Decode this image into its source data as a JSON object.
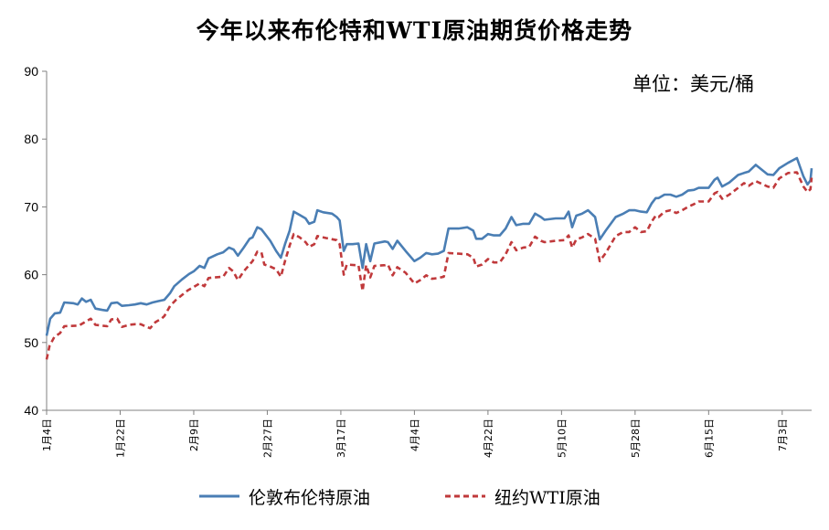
{
  "chart_data": {
    "type": "line",
    "title": "今年以来布伦特和WTI原油期货价格走势",
    "unit": "单位：美元/桶",
    "ylim": [
      40,
      90
    ],
    "yticks": [
      40,
      50,
      60,
      70,
      80,
      90
    ],
    "xlim": [
      0,
      130
    ],
    "xticks": [
      {
        "label": "1月4日",
        "x": 0
      },
      {
        "label": "1月22日",
        "x": 12.5
      },
      {
        "label": "2月9日",
        "x": 25
      },
      {
        "label": "2月27日",
        "x": 37.5
      },
      {
        "label": "3月17日",
        "x": 50
      },
      {
        "label": "4月4日",
        "x": 62.5
      },
      {
        "label": "4月22日",
        "x": 75
      },
      {
        "label": "5月10日",
        "x": 87.5
      },
      {
        "label": "5月28日",
        "x": 100
      },
      {
        "label": "6月15日",
        "x": 112.5
      },
      {
        "label": "7月3日",
        "x": 125
      }
    ],
    "grid": false,
    "legend_position": "bottom",
    "colors": {
      "brent": "#4a7eb4",
      "wti": "#c0393b"
    },
    "series": [
      {
        "name": "伦敦布伦特原油",
        "style": "solid",
        "points": [
          [
            0,
            51
          ],
          [
            0.6,
            53.5
          ],
          [
            1.4,
            54.3
          ],
          [
            2.3,
            54.4
          ],
          [
            3,
            55.9
          ],
          [
            4.5,
            55.8
          ],
          [
            5.3,
            55.6
          ],
          [
            6,
            56.5
          ],
          [
            6.7,
            56
          ],
          [
            7.5,
            56.3
          ],
          [
            8.3,
            55
          ],
          [
            9.5,
            54.8
          ],
          [
            10.3,
            54.7
          ],
          [
            11,
            55.8
          ],
          [
            12,
            55.9
          ],
          [
            12.8,
            55.4
          ],
          [
            14,
            55.5
          ],
          [
            15,
            55.6
          ],
          [
            16,
            55.8
          ],
          [
            17,
            55.6
          ],
          [
            18,
            55.9
          ],
          [
            19,
            56.1
          ],
          [
            20,
            56.3
          ],
          [
            21,
            57.3
          ],
          [
            21.7,
            58.3
          ],
          [
            23,
            59.3
          ],
          [
            24.2,
            60.1
          ],
          [
            25,
            60.5
          ],
          [
            26,
            61.3
          ],
          [
            26.8,
            61
          ],
          [
            27.5,
            62.4
          ],
          [
            29,
            63
          ],
          [
            30,
            63.3
          ],
          [
            31,
            64
          ],
          [
            31.8,
            63.7
          ],
          [
            32.5,
            62.8
          ],
          [
            33.5,
            64
          ],
          [
            34.5,
            65.3
          ],
          [
            35,
            65.5
          ],
          [
            35.8,
            67
          ],
          [
            36.5,
            66.7
          ],
          [
            38,
            65
          ],
          [
            39,
            63.5
          ],
          [
            39.8,
            62.5
          ],
          [
            40.5,
            64.5
          ],
          [
            41.3,
            66.5
          ],
          [
            42,
            69.3
          ],
          [
            43,
            68.8
          ],
          [
            44,
            68.3
          ],
          [
            44.6,
            67.5
          ],
          [
            45.5,
            67.8
          ],
          [
            46,
            69.5
          ],
          [
            47,
            69.2
          ],
          [
            48.5,
            69
          ],
          [
            49.3,
            68.5
          ],
          [
            49.8,
            68
          ],
          [
            50.5,
            63.5
          ],
          [
            51,
            64.5
          ],
          [
            52,
            64.5
          ],
          [
            53,
            64.6
          ],
          [
            53.7,
            61
          ],
          [
            54.3,
            64.5
          ],
          [
            55,
            62
          ],
          [
            55.7,
            64.6
          ],
          [
            57.5,
            64.9
          ],
          [
            58,
            64.8
          ],
          [
            58.8,
            63.8
          ],
          [
            59.6,
            65
          ],
          [
            61,
            63.5
          ],
          [
            62.5,
            62
          ],
          [
            63.5,
            62.5
          ],
          [
            64.5,
            63.2
          ],
          [
            65.5,
            63
          ],
          [
            66.5,
            63.1
          ],
          [
            67.5,
            63.5
          ],
          [
            68.3,
            66.8
          ],
          [
            70,
            66.8
          ],
          [
            71.5,
            67
          ],
          [
            72.5,
            66.5
          ],
          [
            73,
            65.3
          ],
          [
            74,
            65.3
          ],
          [
            75,
            66
          ],
          [
            76,
            65.8
          ],
          [
            77,
            65.8
          ],
          [
            78,
            66.8
          ],
          [
            79,
            68.5
          ],
          [
            79.8,
            67.3
          ],
          [
            81,
            67.5
          ],
          [
            82,
            67.5
          ],
          [
            83,
            69
          ],
          [
            84,
            68.5
          ],
          [
            84.6,
            68.1
          ],
          [
            86.5,
            68.3
          ],
          [
            88,
            68.3
          ],
          [
            88.7,
            69.3
          ],
          [
            89.3,
            67
          ],
          [
            90,
            68.7
          ],
          [
            91,
            69
          ],
          [
            92,
            69.5
          ],
          [
            93.2,
            68.5
          ],
          [
            94,
            65.2
          ],
          [
            95,
            66.5
          ],
          [
            96.7,
            68.5
          ],
          [
            98,
            69
          ],
          [
            99,
            69.5
          ],
          [
            100,
            69.5
          ],
          [
            101,
            69.3
          ],
          [
            102,
            69.2
          ],
          [
            102.8,
            70.5
          ],
          [
            103.5,
            71.3
          ],
          [
            104,
            71.3
          ],
          [
            105,
            71.8
          ],
          [
            106,
            71.8
          ],
          [
            107,
            71.5
          ],
          [
            108,
            71.8
          ],
          [
            109,
            72.4
          ],
          [
            110,
            72.5
          ],
          [
            110.8,
            72.8
          ],
          [
            112.5,
            72.8
          ],
          [
            113.5,
            74
          ],
          [
            114,
            74.3
          ],
          [
            114.8,
            73
          ],
          [
            116,
            73.6
          ],
          [
            117.5,
            74.7
          ],
          [
            118.5,
            75
          ],
          [
            119.3,
            75.2
          ],
          [
            120.5,
            76.2
          ],
          [
            122.5,
            74.8
          ],
          [
            123.5,
            74.7
          ],
          [
            124.5,
            75.7
          ],
          [
            126,
            76.5
          ],
          [
            127.5,
            77.2
          ],
          [
            128.6,
            74.5
          ],
          [
            129.3,
            73.3
          ],
          [
            129.8,
            73.9
          ],
          [
            130,
            75.7
          ]
        ]
      },
      {
        "name": "纽约WTI原油",
        "style": "dashed",
        "points": [
          [
            0,
            47.5
          ],
          [
            0.5,
            49.5
          ],
          [
            1.3,
            50.8
          ],
          [
            2.3,
            51.4
          ],
          [
            3,
            52.4
          ],
          [
            5.5,
            52.5
          ],
          [
            6.5,
            53
          ],
          [
            7.5,
            53.5
          ],
          [
            8.3,
            52.6
          ],
          [
            10.3,
            52.4
          ],
          [
            11,
            53.4
          ],
          [
            12,
            53.5
          ],
          [
            12.8,
            52.3
          ],
          [
            14,
            52.6
          ],
          [
            15,
            52.7
          ],
          [
            16,
            52.7
          ],
          [
            17,
            52.3
          ],
          [
            17.6,
            52.1
          ],
          [
            18.5,
            53
          ],
          [
            19.5,
            53.5
          ],
          [
            20,
            53.9
          ],
          [
            21,
            55.4
          ],
          [
            22,
            56.3
          ],
          [
            23,
            57
          ],
          [
            24,
            57.7
          ],
          [
            25,
            58.2
          ],
          [
            26,
            58.7
          ],
          [
            26.8,
            58.3
          ],
          [
            27.5,
            59.5
          ],
          [
            28.5,
            59.6
          ],
          [
            30,
            59.7
          ],
          [
            31,
            61
          ],
          [
            31.7,
            60.5
          ],
          [
            32.5,
            59.2
          ],
          [
            33.5,
            60.5
          ],
          [
            34.5,
            61.5
          ],
          [
            35,
            62
          ],
          [
            35.8,
            63.4
          ],
          [
            36.5,
            63.3
          ],
          [
            37,
            61.5
          ],
          [
            38,
            61.2
          ],
          [
            39,
            60.8
          ],
          [
            39.8,
            59.7
          ],
          [
            40.5,
            62
          ],
          [
            41.3,
            64.3
          ],
          [
            42,
            66
          ],
          [
            43,
            65.5
          ],
          [
            44,
            64.8
          ],
          [
            44.6,
            64.1
          ],
          [
            45.5,
            64.5
          ],
          [
            46,
            65.7
          ],
          [
            47.5,
            65.4
          ],
          [
            49.3,
            65.1
          ],
          [
            49.8,
            64.5
          ],
          [
            50.5,
            60
          ],
          [
            51,
            61.5
          ],
          [
            52.5,
            61.4
          ],
          [
            53,
            61.4
          ],
          [
            53.7,
            57.6
          ],
          [
            54.3,
            61.4
          ],
          [
            55,
            59.6
          ],
          [
            55.7,
            61.3
          ],
          [
            57.5,
            61.4
          ],
          [
            58,
            61.5
          ],
          [
            58.8,
            59.9
          ],
          [
            59.6,
            61.1
          ],
          [
            61,
            60.3
          ],
          [
            62.5,
            58.7
          ],
          [
            63.5,
            59.2
          ],
          [
            64.5,
            59.9
          ],
          [
            65.5,
            59.4
          ],
          [
            66.5,
            59.5
          ],
          [
            67.5,
            59.7
          ],
          [
            68.3,
            63.2
          ],
          [
            70,
            63.1
          ],
          [
            71.5,
            63
          ],
          [
            72.5,
            62.5
          ],
          [
            73,
            61.2
          ],
          [
            74,
            61.5
          ],
          [
            75,
            62.3
          ],
          [
            76,
            61.8
          ],
          [
            77,
            61.8
          ],
          [
            78,
            63
          ],
          [
            79,
            64.8
          ],
          [
            79.8,
            63.6
          ],
          [
            81,
            64
          ],
          [
            82,
            64.1
          ],
          [
            83,
            65.6
          ],
          [
            84,
            65
          ],
          [
            84.6,
            64.8
          ],
          [
            86.5,
            65
          ],
          [
            88,
            65.1
          ],
          [
            88.7,
            65.8
          ],
          [
            89.3,
            64
          ],
          [
            90,
            65.2
          ],
          [
            91,
            65.5
          ],
          [
            92,
            66
          ],
          [
            93.2,
            65.3
          ],
          [
            94,
            62
          ],
          [
            95,
            63.2
          ],
          [
            96.7,
            65.7
          ],
          [
            98,
            66.3
          ],
          [
            99,
            66.3
          ],
          [
            100,
            67
          ],
          [
            101,
            66.3
          ],
          [
            102,
            66.4
          ],
          [
            102.8,
            67.8
          ],
          [
            103.5,
            68.7
          ],
          [
            104,
            68.5
          ],
          [
            105,
            69.3
          ],
          [
            106,
            69.5
          ],
          [
            107,
            69.1
          ],
          [
            108,
            69.5
          ],
          [
            109,
            70
          ],
          [
            110,
            70.4
          ],
          [
            110.8,
            70.8
          ],
          [
            112.5,
            70.8
          ],
          [
            113.5,
            72
          ],
          [
            114,
            72.2
          ],
          [
            114.8,
            71.2
          ],
          [
            116,
            71.8
          ],
          [
            117.5,
            72.8
          ],
          [
            118.5,
            73.5
          ],
          [
            119.3,
            73.1
          ],
          [
            120.5,
            73.8
          ],
          [
            122.5,
            73
          ],
          [
            123.5,
            72.8
          ],
          [
            124.5,
            74.2
          ],
          [
            126,
            75
          ],
          [
            127.5,
            75.1
          ],
          [
            128.6,
            73
          ],
          [
            129.3,
            72.2
          ],
          [
            129.8,
            72.6
          ],
          [
            130,
            74.3
          ]
        ]
      }
    ]
  }
}
